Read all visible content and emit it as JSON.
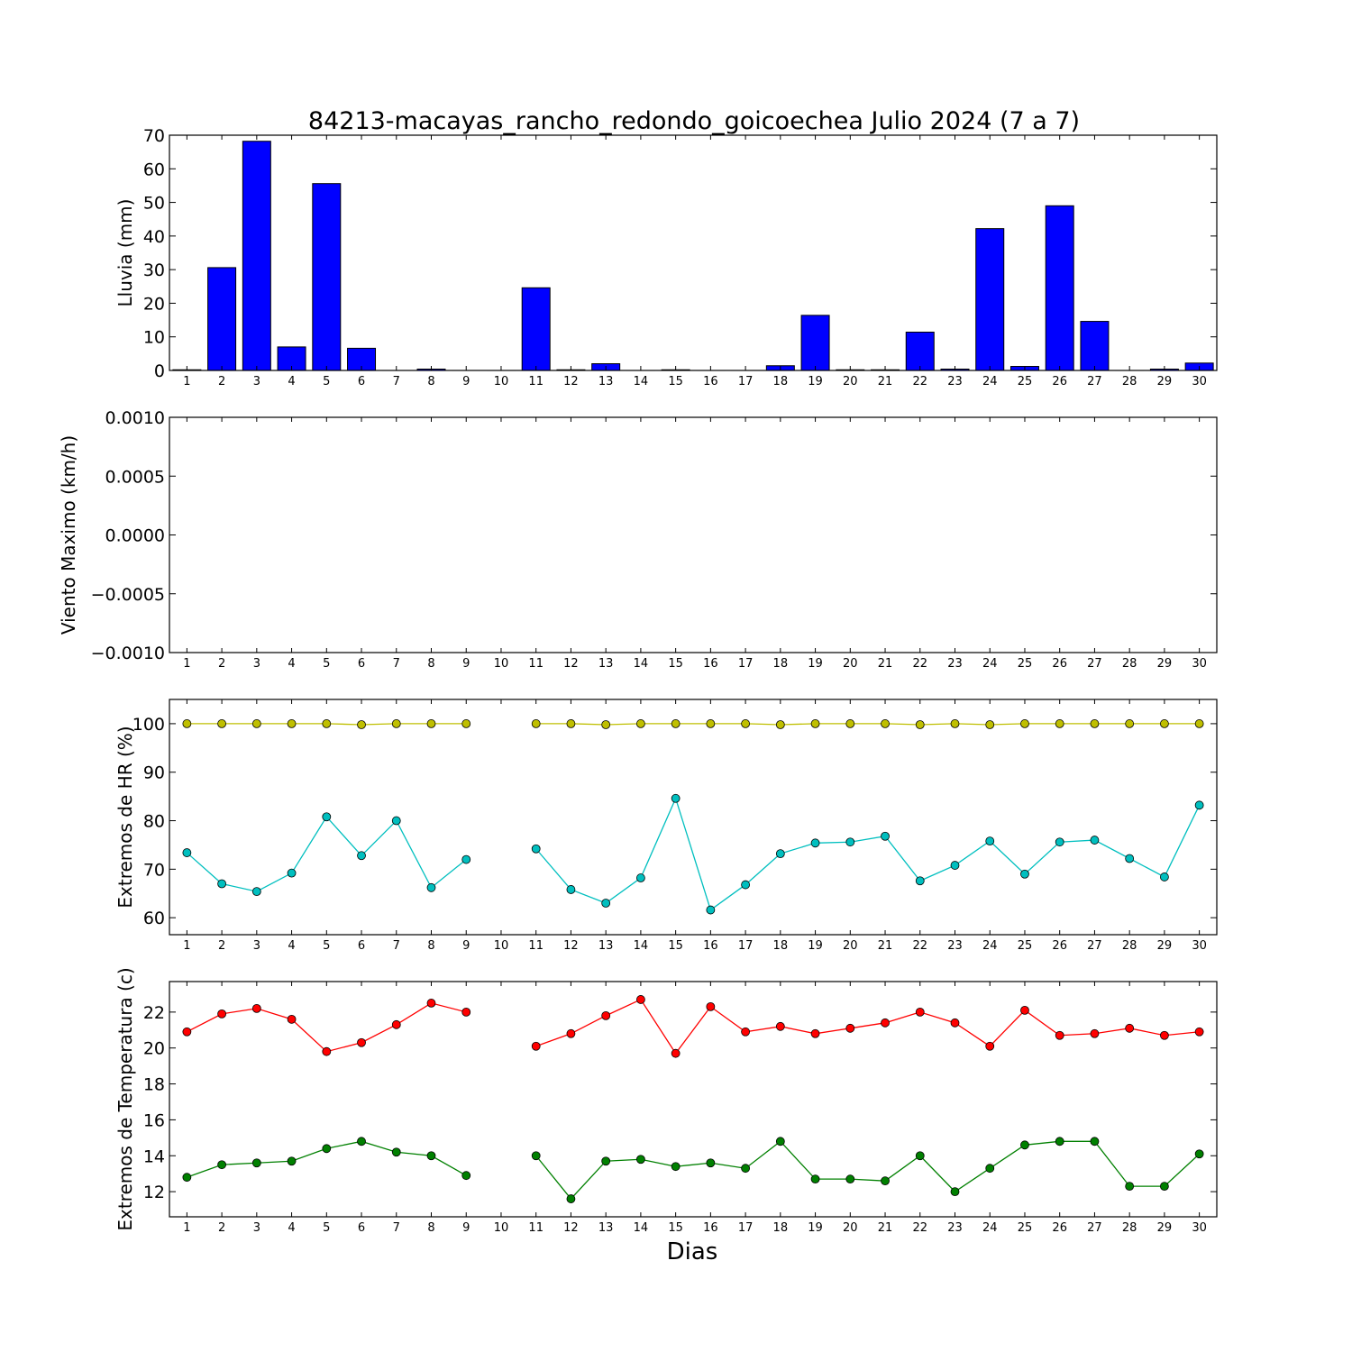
{
  "title": "84213-macayas_rancho_redondo_goicoechea Julio 2024  (7 a 7)",
  "xlabel": "Dias",
  "chart_data": [
    {
      "type": "bar",
      "ylabel": "Lluvia (mm)",
      "ylim": [
        0,
        70
      ],
      "yticks": [
        "0",
        "10",
        "20",
        "30",
        "40",
        "50",
        "60",
        "70"
      ],
      "ytick_values": [
        0,
        10,
        20,
        30,
        40,
        50,
        60,
        70
      ],
      "x": [
        1,
        2,
        3,
        4,
        5,
        6,
        7,
        8,
        9,
        10,
        11,
        12,
        13,
        14,
        15,
        16,
        17,
        18,
        19,
        20,
        21,
        22,
        23,
        24,
        25,
        26,
        27,
        28,
        29,
        30
      ],
      "series": [
        {
          "color": "#0000ff",
          "values": [
            0.2,
            30.6,
            68.2,
            7.0,
            55.6,
            6.6,
            0,
            0.4,
            0,
            0,
            24.6,
            0.2,
            2.0,
            0,
            0.2,
            0,
            0,
            1.4,
            16.4,
            0.2,
            0.2,
            11.4,
            0.4,
            42.2,
            1.2,
            49.0,
            14.6,
            0,
            0.4,
            2.2
          ]
        }
      ]
    },
    {
      "type": "line",
      "ylabel": "Viento Maximo (km/h)",
      "ylim": [
        -0.001,
        0.001
      ],
      "yticks": [
        "−0.0010",
        "−0.0005",
        "0.0000",
        "0.0005",
        "0.0010"
      ],
      "ytick_values": [
        -0.001,
        -0.0005,
        0,
        0.0005,
        0.001
      ],
      "x": [
        1,
        2,
        3,
        4,
        5,
        6,
        7,
        8,
        9,
        10,
        11,
        12,
        13,
        14,
        15,
        16,
        17,
        18,
        19,
        20,
        21,
        22,
        23,
        24,
        25,
        26,
        27,
        28,
        29,
        30
      ],
      "series": []
    },
    {
      "type": "line",
      "ylabel": "Extremos de HR (%)",
      "ylim": [
        56.5,
        105
      ],
      "yticks": [
        "60",
        "70",
        "80",
        "90",
        "100"
      ],
      "ytick_values": [
        60,
        70,
        80,
        90,
        100
      ],
      "x": [
        1,
        2,
        3,
        4,
        5,
        6,
        7,
        8,
        9,
        10,
        11,
        12,
        13,
        14,
        15,
        16,
        17,
        18,
        19,
        20,
        21,
        22,
        23,
        24,
        25,
        26,
        27,
        28,
        29,
        30
      ],
      "series": [
        {
          "color": "#bfbf00",
          "values": [
            100,
            100,
            100,
            100,
            100,
            99.8,
            100,
            100,
            100,
            null,
            100,
            100,
            99.8,
            100,
            100,
            100,
            100,
            99.8,
            100,
            100,
            100,
            99.8,
            100,
            99.8,
            100,
            100,
            100,
            100,
            100,
            100
          ]
        },
        {
          "color": "#00bfbf",
          "values": [
            73.4,
            67.0,
            65.4,
            69.2,
            80.8,
            72.8,
            80.0,
            66.2,
            72.0,
            null,
            74.2,
            65.8,
            63.0,
            68.2,
            84.6,
            61.6,
            66.8,
            73.2,
            75.4,
            75.6,
            76.8,
            67.6,
            70.8,
            75.8,
            69.0,
            75.6,
            76.0,
            72.2,
            68.4,
            83.2
          ]
        }
      ]
    },
    {
      "type": "line",
      "ylabel": "Extremos de Temperatura (c)",
      "ylim": [
        10.6,
        23.7
      ],
      "yticks": [
        "12",
        "14",
        "16",
        "18",
        "20",
        "22"
      ],
      "ytick_values": [
        12,
        14,
        16,
        18,
        20,
        22
      ],
      "x": [
        1,
        2,
        3,
        4,
        5,
        6,
        7,
        8,
        9,
        10,
        11,
        12,
        13,
        14,
        15,
        16,
        17,
        18,
        19,
        20,
        21,
        22,
        23,
        24,
        25,
        26,
        27,
        28,
        29,
        30
      ],
      "series": [
        {
          "color": "#ff0000",
          "values": [
            20.9,
            21.9,
            22.2,
            21.6,
            19.8,
            20.3,
            21.3,
            22.5,
            22.0,
            null,
            20.1,
            20.8,
            21.8,
            22.7,
            19.7,
            22.3,
            20.9,
            21.2,
            20.8,
            21.1,
            21.4,
            22.0,
            21.4,
            20.1,
            22.1,
            20.7,
            20.8,
            21.1,
            20.7,
            20.9
          ]
        },
        {
          "color": "#008000",
          "values": [
            12.8,
            13.5,
            13.6,
            13.7,
            14.4,
            14.8,
            14.2,
            14.0,
            12.9,
            null,
            14.0,
            11.6,
            13.7,
            13.8,
            13.4,
            13.6,
            13.3,
            14.8,
            12.7,
            12.7,
            12.6,
            14.0,
            12.0,
            13.3,
            14.6,
            14.8,
            14.8,
            12.3,
            12.3,
            14.1
          ]
        }
      ]
    }
  ]
}
